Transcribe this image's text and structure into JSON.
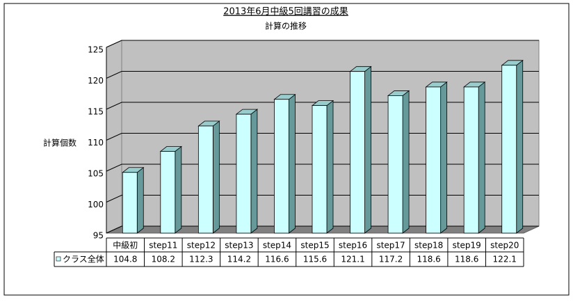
{
  "chart_data": {
    "type": "bar3d",
    "title": "2013年6月中級5回講習の成果",
    "subtitle": "計算の推移",
    "y_label": "計算個数",
    "categories": [
      "中級初",
      "step11",
      "step12",
      "step13",
      "step14",
      "step15",
      "step16",
      "step17",
      "step18",
      "step19",
      "step20"
    ],
    "series": [
      {
        "name": "クラス全体",
        "color": "#ccffff",
        "values": [
          104.8,
          108.2,
          112.3,
          114.2,
          116.6,
          115.6,
          121.1,
          117.2,
          118.6,
          118.6,
          122.1
        ]
      }
    ],
    "ylim": [
      95,
      125
    ],
    "yticks": [
      95,
      100,
      105,
      110,
      115,
      120,
      125
    ],
    "grid": true
  }
}
